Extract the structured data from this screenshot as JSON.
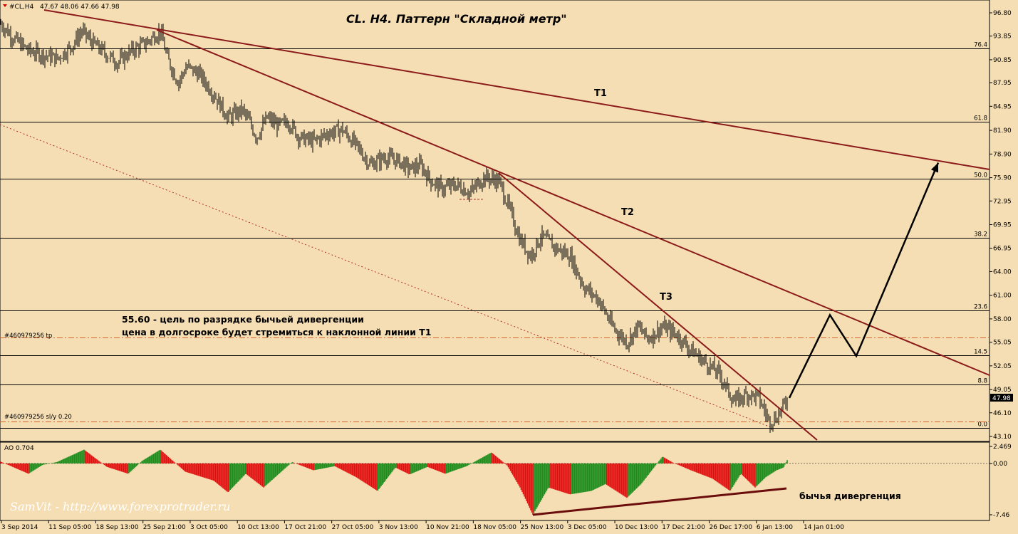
{
  "header": {
    "symbol": "#CL,H4",
    "ohlc": "47.67 48.06 47.66 47.98"
  },
  "title": "CL. H4. Паттерн \"Складной метр\"",
  "chart_data": {
    "type": "candlestick",
    "symbol": "CL",
    "timeframe": "H4",
    "price_axis": {
      "min": 43.1,
      "max": 96.8,
      "ticks": [
        "96.80",
        "93.85",
        "90.85",
        "87.95",
        "84.95",
        "81.90",
        "78.90",
        "75.90",
        "72.95",
        "69.95",
        "66.95",
        "64.00",
        "61.00",
        "58.00",
        "55.05",
        "52.05",
        "49.05",
        "46.10",
        "43.10"
      ]
    },
    "last_price": "47.98",
    "time_axis": [
      "3 Sep 2014",
      "11 Sep 05:00",
      "18 Sep 13:00",
      "25 Sep 21:00",
      "3 Oct 05:00",
      "10 Oct 13:00",
      "17 Oct 21:00",
      "27 Oct 05:00",
      "3 Nov 13:00",
      "10 Nov 21:00",
      "18 Nov 05:00",
      "25 Nov 13:00",
      "3 Dec 05:00",
      "10 Dec 13:00",
      "17 Dec 21:00",
      "26 Dec 17:00",
      "6 Jan 13:00",
      "14 Jan 01:00"
    ],
    "fib_levels": [
      {
        "label": "76.4",
        "price": 92.3
      },
      {
        "label": "61.8",
        "price": 83.0
      },
      {
        "label": "50.0",
        "price": 75.8
      },
      {
        "label": "38.2",
        "price": 68.3
      },
      {
        "label": "23.6",
        "price": 59.1
      },
      {
        "label": "14.5",
        "price": 53.4
      },
      {
        "label": "8.8",
        "price": 49.7
      },
      {
        "label": "0.0",
        "price": 44.2
      }
    ],
    "orders": [
      {
        "label": "#460979256 tp",
        "price": 55.6
      },
      {
        "label": "#460979256 sl/y 0.20",
        "price": 45.0
      }
    ],
    "trendlines": [
      "T1",
      "T2",
      "T3"
    ],
    "annotations": [
      "55.60 - цель по разрядке бычьей дивергенции",
      "цена в долгосроке будет стремиться к наклонной линии Т1"
    ],
    "ohlc_path": [
      [
        0,
        95.5
      ],
      [
        20,
        93.5
      ],
      [
        40,
        92.0
      ],
      [
        60,
        91.5
      ],
      [
        80,
        91.0
      ],
      [
        100,
        92.5
      ],
      [
        115,
        94.5
      ],
      [
        130,
        93.0
      ],
      [
        150,
        91.5
      ],
      [
        165,
        90.5
      ],
      [
        185,
        92.0
      ],
      [
        205,
        93.0
      ],
      [
        225,
        94.5
      ],
      [
        235,
        91.0
      ],
      [
        250,
        88.0
      ],
      [
        262,
        90.0
      ],
      [
        280,
        89.0
      ],
      [
        300,
        86.5
      ],
      [
        320,
        83.5
      ],
      [
        340,
        84.5
      ],
      [
        350,
        83.0
      ],
      [
        360,
        81.0
      ],
      [
        375,
        83.5
      ],
      [
        390,
        82.5
      ],
      [
        405,
        83.0
      ],
      [
        420,
        81.0
      ],
      [
        440,
        80.5
      ],
      [
        460,
        81.5
      ],
      [
        480,
        82.0
      ],
      [
        500,
        80.0
      ],
      [
        520,
        77.5
      ],
      [
        540,
        78.5
      ],
      [
        560,
        78.0
      ],
      [
        575,
        77.0
      ],
      [
        590,
        77.5
      ],
      [
        605,
        75.5
      ],
      [
        620,
        74.5
      ],
      [
        640,
        75.0
      ],
      [
        660,
        74.0
      ],
      [
        680,
        76.0
      ],
      [
        700,
        75.5
      ],
      [
        715,
        72.0
      ],
      [
        730,
        68.0
      ],
      [
        745,
        66.0
      ],
      [
        760,
        68.5
      ],
      [
        780,
        67.0
      ],
      [
        800,
        66.0
      ],
      [
        820,
        62.0
      ],
      [
        840,
        60.5
      ],
      [
        860,
        57.0
      ],
      [
        880,
        55.0
      ],
      [
        895,
        57.0
      ],
      [
        910,
        55.5
      ],
      [
        930,
        57.0
      ],
      [
        950,
        56.0
      ],
      [
        970,
        54.0
      ],
      [
        990,
        52.5
      ],
      [
        1010,
        51.0
      ],
      [
        1030,
        47.5
      ],
      [
        1050,
        48.5
      ],
      [
        1065,
        48.0
      ],
      [
        1080,
        45.0
      ],
      [
        1090,
        45.5
      ],
      [
        1100,
        47.0
      ],
      [
        1106,
        47.98
      ]
    ],
    "projection": [
      [
        1106,
        47.98
      ],
      [
        1163,
        58.5
      ],
      [
        1200,
        53.3
      ],
      [
        1315,
        77.8
      ]
    ],
    "ao_indicator": {
      "label": "AO 0.704",
      "ticks": [
        "2.469",
        "0.00",
        "-7.46"
      ],
      "note": "бычья дивергенция",
      "shape": [
        [
          0,
          0.3
        ],
        [
          40,
          -1.5
        ],
        [
          60,
          -0.2
        ],
        [
          80,
          0.2
        ],
        [
          118,
          2.0
        ],
        [
          150,
          -0.5
        ],
        [
          180,
          -1.5
        ],
        [
          200,
          0.4
        ],
        [
          225,
          2.0
        ],
        [
          260,
          -1.2
        ],
        [
          300,
          -2.5
        ],
        [
          320,
          -4.2
        ],
        [
          345,
          -1.5
        ],
        [
          370,
          -3.5
        ],
        [
          395,
          -1.2
        ],
        [
          410,
          0.2
        ],
        [
          440,
          -1.0
        ],
        [
          470,
          -0.4
        ],
        [
          500,
          -2.0
        ],
        [
          530,
          -4.0
        ],
        [
          555,
          -0.6
        ],
        [
          575,
          -1.6
        ],
        [
          600,
          -0.5
        ],
        [
          625,
          -1.5
        ],
        [
          655,
          -0.4
        ],
        [
          690,
          1.6
        ],
        [
          712,
          -0.3
        ],
        [
          730,
          -3.5
        ],
        [
          748,
          -7.46
        ],
        [
          770,
          -3.5
        ],
        [
          800,
          -4.5
        ],
        [
          830,
          -4.0
        ],
        [
          850,
          -3.0
        ],
        [
          880,
          -5.0
        ],
        [
          900,
          -3.0
        ],
        [
          930,
          1.0
        ],
        [
          945,
          0.1
        ],
        [
          970,
          -1.0
        ],
        [
          1000,
          -2.2
        ],
        [
          1025,
          -4.0
        ],
        [
          1040,
          -1.5
        ],
        [
          1060,
          -3.5
        ],
        [
          1075,
          -2.0
        ],
        [
          1090,
          -1.0
        ],
        [
          1100,
          -0.6
        ],
        [
          1106,
          0.704
        ]
      ]
    }
  },
  "watermark": "SamVit - http://www.forexprotrader.ru"
}
